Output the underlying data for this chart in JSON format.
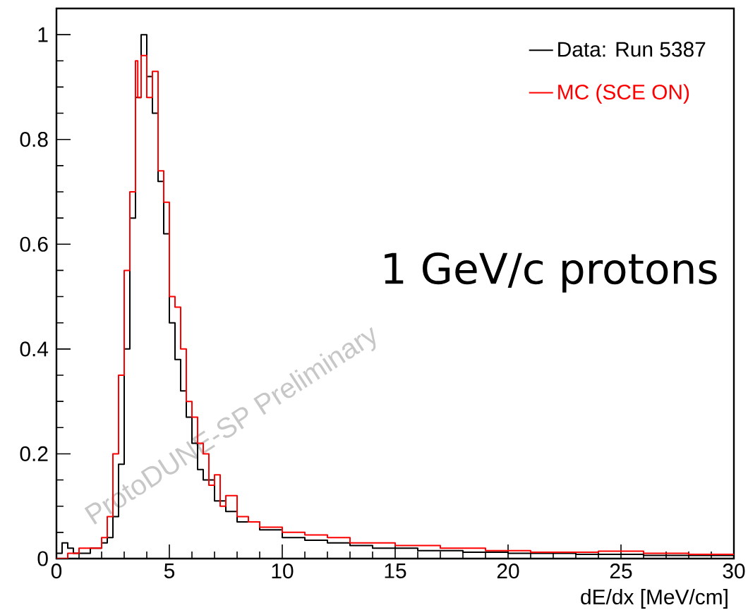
{
  "chart_data": {
    "type": "step",
    "xlabel": "dE/dx [MeV/cm]",
    "xlim": [
      0,
      30
    ],
    "xticks": [
      0,
      5,
      10,
      15,
      20,
      25,
      30
    ],
    "ylim": [
      0,
      1.05
    ],
    "yticks": [
      0,
      0.2,
      0.4,
      0.6,
      0.8,
      1
    ],
    "legend": "top right",
    "annotations": [
      "1 GeV/c protons",
      "ProtoDUNE-SP Preliminary"
    ],
    "series": [
      {
        "name": "Data: Run 5387",
        "color": "#000000",
        "x": [
          0,
          0.25,
          0.5,
          0.75,
          1,
          1.5,
          2,
          2.25,
          2.5,
          2.75,
          3.0,
          3.25,
          3.5,
          3.75,
          4.0,
          4.25,
          4.5,
          4.75,
          5.0,
          5.25,
          5.5,
          5.75,
          6.0,
          6.25,
          6.5,
          7.0,
          7.5,
          8.0,
          9.0,
          10,
          11,
          12,
          13,
          14,
          16,
          18,
          20,
          23,
          26,
          30
        ],
        "values": [
          0.01,
          0.03,
          0.02,
          0.01,
          0.01,
          0.02,
          0.03,
          0.04,
          0.08,
          0.18,
          0.4,
          0.65,
          0.88,
          1.0,
          0.92,
          0.85,
          0.72,
          0.62,
          0.45,
          0.38,
          0.32,
          0.27,
          0.22,
          0.17,
          0.15,
          0.11,
          0.09,
          0.07,
          0.055,
          0.04,
          0.035,
          0.03,
          0.025,
          0.02,
          0.015,
          0.012,
          0.01,
          0.008,
          0.006,
          0.006
        ]
      },
      {
        "name": "MC (SCE ON)",
        "color": "#ff0000",
        "x": [
          0,
          0.5,
          1,
          1.5,
          2,
          2.25,
          2.5,
          2.75,
          3.0,
          3.25,
          3.5,
          3.6,
          3.75,
          4.0,
          4.25,
          4.5,
          4.75,
          5.0,
          5.25,
          5.5,
          5.75,
          6.0,
          6.25,
          6.5,
          6.75,
          7.0,
          7.25,
          7.5,
          8,
          8.5,
          9,
          10,
          11,
          12,
          13,
          14,
          15,
          16,
          17,
          19,
          21,
          24,
          26,
          28,
          30
        ],
        "values": [
          0,
          0.01,
          0.02,
          0.02,
          0.04,
          0.08,
          0.2,
          0.35,
          0.55,
          0.7,
          0.95,
          0.88,
          0.96,
          0.88,
          0.93,
          0.74,
          0.68,
          0.5,
          0.48,
          0.4,
          0.3,
          0.27,
          0.22,
          0.2,
          0.14,
          0.16,
          0.1,
          0.12,
          0.08,
          0.07,
          0.06,
          0.05,
          0.045,
          0.04,
          0.03,
          0.03,
          0.025,
          0.025,
          0.02,
          0.015,
          0.012,
          0.014,
          0.01,
          0.008,
          0.008
        ]
      }
    ]
  }
}
